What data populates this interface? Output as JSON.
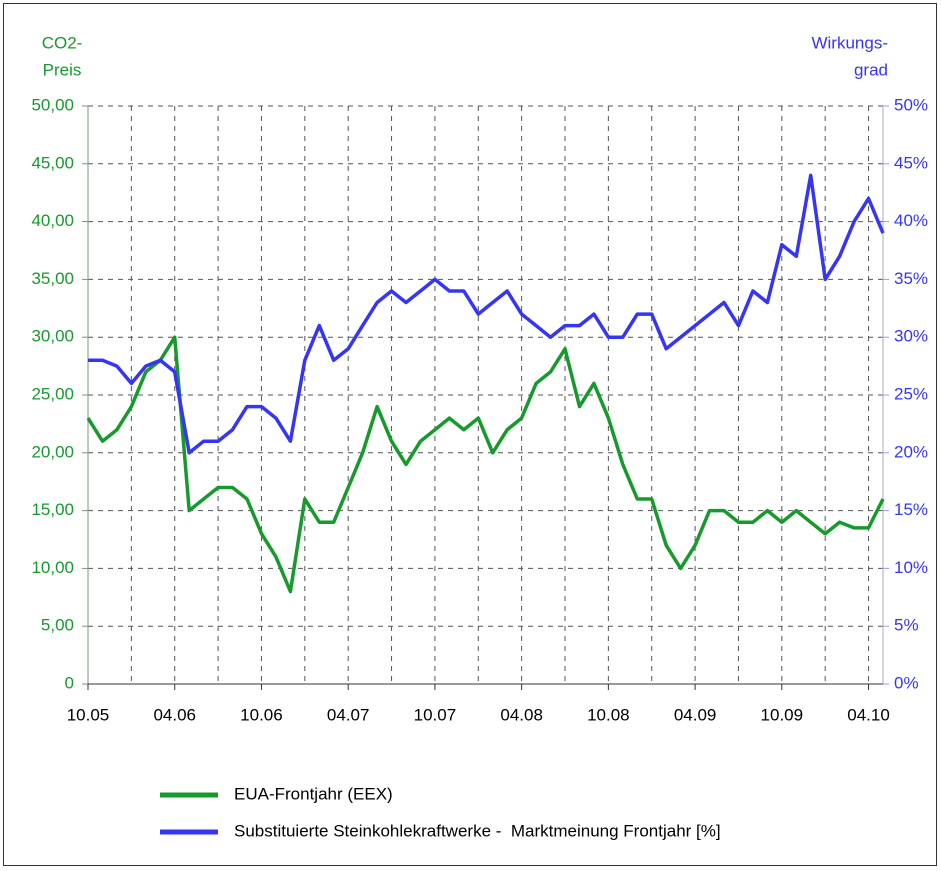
{
  "chart_data": {
    "type": "line",
    "ylabel": [
      "CO2-",
      "Preis"
    ],
    "y2label": [
      "Wirkungs-",
      "grad"
    ],
    "categories": [
      "10.05",
      null,
      null,
      null,
      null,
      null,
      "04.06",
      null,
      null,
      null,
      null,
      null,
      "10.06",
      null,
      null,
      null,
      null,
      null,
      "04.07",
      null,
      null,
      null,
      null,
      null,
      "10.07",
      null,
      null,
      null,
      null,
      null,
      "04.08",
      null,
      null,
      null,
      null,
      null,
      "10.08",
      null,
      null,
      null,
      null,
      null,
      "04.09",
      null,
      null,
      null,
      null,
      null,
      "10.09",
      null,
      null,
      null,
      null,
      null,
      "04.10",
      null
    ],
    "series": [
      {
        "name": "EUA-Frontjahr (EEX)",
        "color": "#169a2c",
        "axis": "y",
        "values": [
          23,
          21,
          22,
          24,
          27,
          28,
          30,
          15,
          16,
          17,
          17,
          16,
          13,
          11,
          8,
          16,
          14,
          14,
          17,
          20,
          24,
          21,
          19,
          21,
          22,
          23,
          22,
          23,
          20,
          22,
          23,
          26,
          27,
          29,
          24,
          26,
          23,
          19,
          16,
          16,
          12,
          10,
          12,
          15,
          15,
          14,
          14,
          15,
          14,
          15,
          14,
          13,
          14,
          13.5,
          13.5,
          16
        ]
      },
      {
        "name": "Substituierte Steinkohlekraftwerke -  Marktmeinung Frontjahr [%]",
        "color": "#3535f5",
        "axis": "y2",
        "values": [
          28,
          28,
          27.5,
          26,
          27.5,
          28,
          27,
          20,
          21,
          21,
          22,
          24,
          24,
          23,
          21,
          28,
          31,
          28,
          29,
          31,
          33,
          34,
          33,
          34,
          35,
          34,
          34,
          32,
          33,
          34,
          32,
          31,
          30,
          31,
          31,
          32,
          30,
          30,
          32,
          32,
          29,
          30,
          31,
          32,
          33,
          31,
          34,
          33,
          38,
          37,
          44,
          35,
          37,
          40,
          42,
          39
        ]
      }
    ],
    "ylim": [
      0,
      50
    ],
    "yticks": [
      0,
      {
        "value": 5,
        "label": "5,00"
      },
      {
        "value": 10,
        "label": "10,00"
      },
      {
        "value": 15,
        "label": "15,00"
      },
      {
        "value": 20,
        "label": "20,00"
      },
      {
        "value": 25,
        "label": "25,00"
      },
      {
        "value": 30,
        "label": "30,00"
      },
      {
        "value": 35,
        "label": "35,00"
      },
      {
        "value": 40,
        "label": "40,00"
      },
      {
        "value": 45,
        "label": "45,00"
      },
      {
        "value": 50,
        "label": "50,00"
      }
    ],
    "y2lim": [
      0,
      50
    ],
    "y2ticks": [
      {
        "value": 0,
        "label": "0%"
      },
      {
        "value": 5,
        "label": "5%"
      },
      {
        "value": 10,
        "label": "10%"
      },
      {
        "value": 15,
        "label": "15%"
      },
      {
        "value": 20,
        "label": "20%"
      },
      {
        "value": 25,
        "label": "25%"
      },
      {
        "value": 30,
        "label": "30%"
      },
      {
        "value": 35,
        "label": "35%"
      },
      {
        "value": 40,
        "label": "40%"
      },
      {
        "value": 45,
        "label": "45%"
      },
      {
        "value": 50,
        "label": "50%"
      }
    ],
    "grid": true,
    "legend": "bottom"
  }
}
